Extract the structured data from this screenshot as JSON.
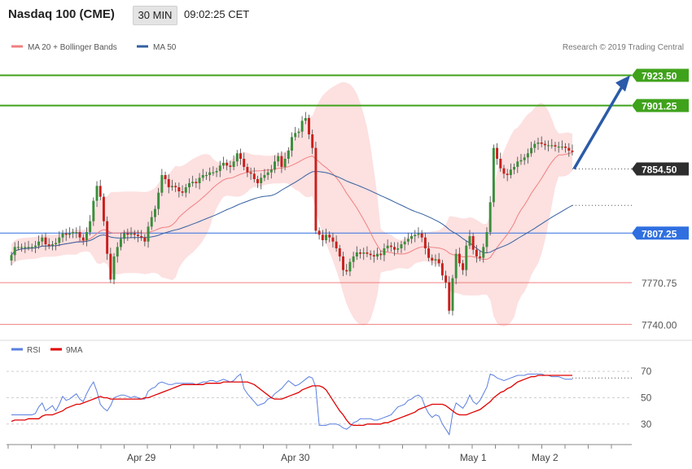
{
  "header": {
    "title": "Nasdaq 100 (CME)",
    "timeframe": "30 MIN",
    "time": "09:02:25 CET"
  },
  "legend": {
    "ma20_bb": {
      "label": "MA 20 + Bollinger Bands",
      "color": "#f08080"
    },
    "ma50": {
      "label": "MA 50",
      "color": "#3560a0"
    },
    "copyright": "Research © 2019 Trading Central"
  },
  "rsi_legend": {
    "rsi": {
      "label": "RSI",
      "color": "#5b7fe0"
    },
    "ma9": {
      "label": "9MA",
      "color": "#e00000"
    }
  },
  "colors": {
    "green_level": "#3fa21b",
    "red_level": "#f08080",
    "current_price": "#2e2e2e",
    "ma50_price": "#2f6fe0",
    "up_candle": "#3a8e3a",
    "down_candle": "#c8201c",
    "band_fill": "#fde0e0",
    "arrow": "#2a5aa8"
  },
  "chart_data": [
    {
      "type": "candlestick",
      "title": "Nasdaq 100 (CME)",
      "timeframe": "30 MIN",
      "ylim": [
        7733,
        7940
      ],
      "x_labels": [
        "Apr 29",
        "Apr 30",
        "May 1",
        "May 2"
      ],
      "levels": [
        {
          "label": "7923.50",
          "value": 7923.5,
          "kind": "resistance"
        },
        {
          "label": "7901.25",
          "value": 7901.25,
          "kind": "resistance"
        },
        {
          "label": "7854.50",
          "value": 7854.5,
          "kind": "last_price"
        },
        {
          "label": "7807.25",
          "value": 7807.25,
          "kind": "ma50"
        },
        {
          "label": "7770.75",
          "value": 7770.75,
          "kind": "support"
        },
        {
          "label": "7740.00",
          "value": 7740.0,
          "kind": "support"
        }
      ],
      "projection": {
        "from": 7854.5,
        "to": 7923.5
      },
      "closes": [
        7791,
        7797,
        7797,
        7797,
        7797,
        7797,
        7797,
        7798,
        7801,
        7804,
        7799,
        7798,
        7799,
        7800,
        7804,
        7807,
        7806,
        7807,
        7808,
        7808,
        7804,
        7802,
        7808,
        7816,
        7831,
        7842,
        7834,
        7816,
        7792,
        7773,
        7790,
        7797,
        7803,
        7807,
        7806,
        7807,
        7806,
        7805,
        7804,
        7801,
        7812,
        7819,
        7825,
        7837,
        7850,
        7847,
        7841,
        7842,
        7841,
        7838,
        7837,
        7841,
        7844,
        7845,
        7844,
        7848,
        7850,
        7850,
        7852,
        7852,
        7853,
        7857,
        7859,
        7857,
        7856,
        7860,
        7866,
        7862,
        7856,
        7852,
        7851,
        7847,
        7844,
        7848,
        7850,
        7852,
        7854,
        7860,
        7864,
        7856,
        7862,
        7868,
        7878,
        7881,
        7882,
        7890,
        7892,
        7880,
        7870,
        7809,
        7806,
        7802,
        7806,
        7804,
        7801,
        7796,
        7790,
        7780,
        7779,
        7786,
        7790,
        7793,
        7792,
        7793,
        7792,
        7791,
        7790,
        7792,
        7791,
        7796,
        7798,
        7797,
        7795,
        7796,
        7799,
        7801,
        7803,
        7805,
        7806,
        7807,
        7804,
        7796,
        7789,
        7787,
        7788,
        7785,
        7776,
        7771,
        7750,
        7774,
        7792,
        7785,
        7780,
        7798,
        7805,
        7795,
        7790,
        7789,
        7797,
        7808,
        7830,
        7870,
        7862,
        7855,
        7851,
        7850,
        7854,
        7856,
        7860,
        7861,
        7863,
        7866,
        7870,
        7873,
        7874,
        7873,
        7872,
        7872,
        7872,
        7871,
        7871,
        7871,
        7870,
        7868,
        7867
      ]
    },
    {
      "type": "line",
      "title": "RSI",
      "ylim": [
        15,
        80
      ],
      "y_ticks": [
        30,
        50,
        70
      ],
      "reference_line": 65,
      "series": [
        {
          "name": "RSI",
          "values": [
            37,
            37,
            37,
            37,
            37,
            37,
            37,
            38,
            43,
            46,
            40,
            42,
            44,
            40,
            45,
            51,
            48,
            49,
            51,
            53,
            49,
            47,
            53,
            58,
            62,
            55,
            45,
            42,
            40,
            44,
            50,
            51,
            52,
            52,
            51,
            50,
            51,
            50,
            49,
            49,
            55,
            57,
            58,
            61,
            62,
            61,
            60,
            60,
            61,
            61,
            61,
            61,
            61,
            61,
            60,
            61,
            62,
            62,
            63,
            63,
            62,
            63,
            64,
            63,
            62,
            63,
            66,
            68,
            57,
            53,
            50,
            47,
            44,
            45,
            46,
            49,
            50,
            53,
            55,
            57,
            60,
            63,
            61,
            59,
            60,
            62,
            64,
            66,
            65,
            58,
            29,
            29,
            29,
            30,
            30,
            30,
            29,
            27,
            26,
            28,
            31,
            32,
            34,
            34,
            34,
            34,
            33,
            33,
            34,
            35,
            36,
            37,
            40,
            43,
            44,
            45,
            48,
            49,
            51,
            52,
            50,
            43,
            38,
            35,
            37,
            36,
            30,
            26,
            22,
            38,
            46,
            44,
            42,
            46,
            52,
            47,
            45,
            48,
            53,
            58,
            68,
            67,
            65,
            64,
            63,
            64,
            65,
            66,
            67,
            67,
            67,
            68,
            68,
            68,
            68,
            68,
            67,
            67,
            66,
            66,
            66,
            65,
            64,
            64,
            64
          ]
        },
        {
          "name": "9MA",
          "values": [
            32,
            33,
            33,
            33,
            33,
            34,
            34,
            34,
            34,
            36,
            37,
            37,
            37,
            38,
            39,
            40,
            42,
            43,
            44,
            45,
            45,
            46,
            47,
            48,
            49,
            50,
            51,
            50,
            50,
            49,
            49,
            49,
            49,
            49,
            49,
            49,
            49,
            49,
            49,
            50,
            50,
            51,
            52,
            53,
            54,
            55,
            56,
            57,
            58,
            59,
            60,
            60,
            60,
            60,
            60,
            60,
            60,
            61,
            61,
            61,
            61,
            61,
            62,
            62,
            62,
            62,
            62,
            62,
            62,
            62,
            61,
            60,
            58,
            56,
            54,
            52,
            50,
            49,
            49,
            49,
            50,
            51,
            52,
            53,
            54,
            56,
            57,
            58,
            59,
            59,
            59,
            58,
            56,
            52,
            48,
            44,
            40,
            37,
            33,
            30,
            29,
            29,
            29,
            29,
            30,
            30,
            30,
            30,
            30,
            31,
            31,
            32,
            33,
            34,
            35,
            36,
            37,
            38,
            39,
            41,
            42,
            43,
            44,
            45,
            45,
            45,
            45,
            44,
            42,
            40,
            38,
            37,
            37,
            37,
            38,
            39,
            40,
            41,
            43,
            45,
            47,
            50,
            52,
            54,
            55,
            57,
            58,
            60,
            62,
            63,
            64,
            65,
            66,
            66,
            67,
            67,
            67,
            67,
            67,
            67,
            67,
            67,
            67,
            67,
            67
          ]
        }
      ]
    }
  ]
}
